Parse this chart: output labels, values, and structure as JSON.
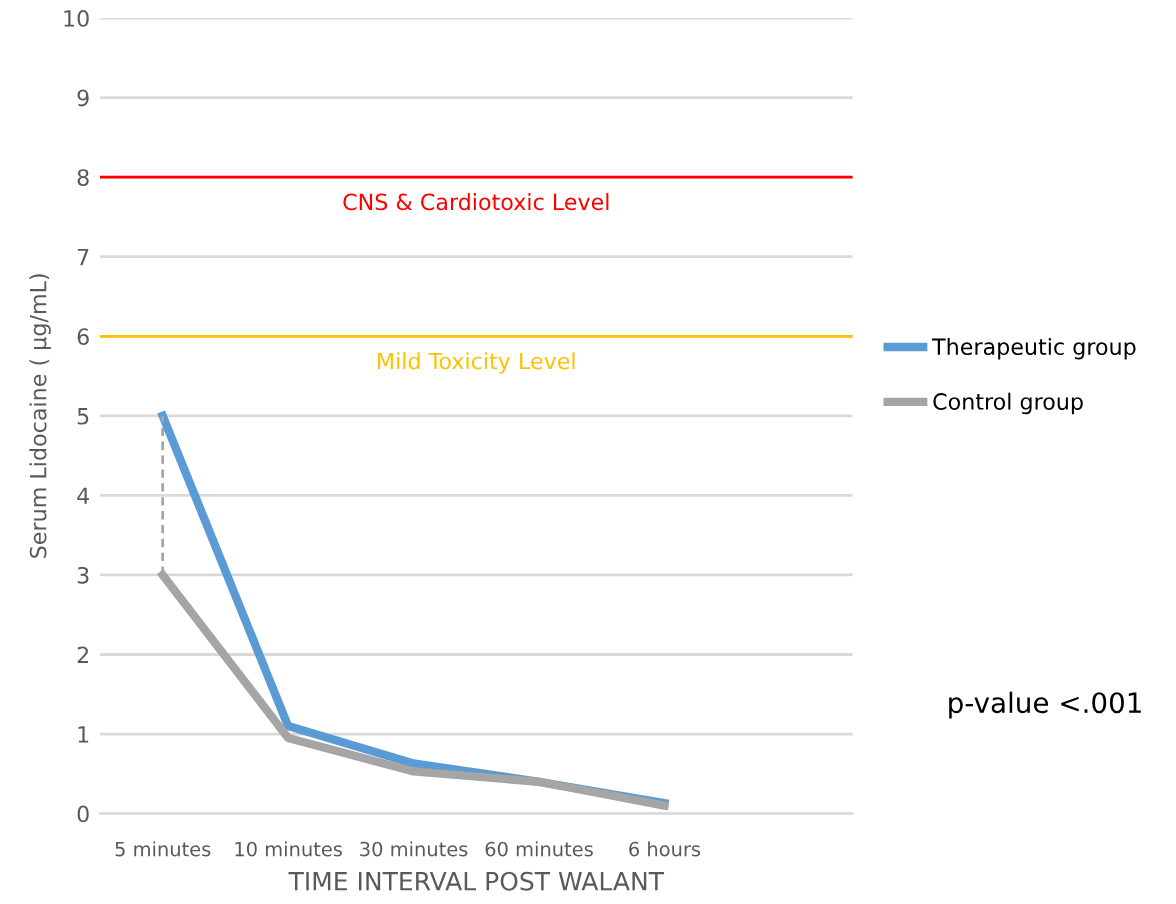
{
  "chart_data": {
    "type": "line",
    "xlabel": "TIME INTERVAL POST WALANT",
    "ylabel": "Serum Lidocaine ( µg/mL)",
    "categories": [
      "5 minutes",
      "10 minutes",
      "30 minutes",
      "60 minutes",
      "6 hours",
      null
    ],
    "series": [
      {
        "name": "Therapeutic group",
        "color": "#5b9bd5",
        "values": [
          5,
          1.1,
          0.63,
          0.4,
          0.13,
          null
        ]
      },
      {
        "name": "Control group",
        "color": "#a5a5a5",
        "values": [
          3,
          0.95,
          0.53,
          0.4,
          0.1,
          null
        ]
      },
      {
        "type": "line",
        "color": "#a5a5a5",
        "line_style": "dashed",
        "x": [
          "5 minutes",
          "5 minutes"
        ],
        "values": [
          3,
          5
        ]
      }
    ],
    "ylim": [
      0,
      10
    ],
    "yticks": [
      0,
      1,
      2,
      3,
      4,
      5,
      6,
      7,
      8,
      9,
      10
    ],
    "grid": "y",
    "legend": "right",
    "ref_lines": [
      {
        "axis": "y",
        "value": 8,
        "label": "CNS & Cardiotoxic Level",
        "color": "#ff0000"
      },
      {
        "axis": "y",
        "value": 6,
        "label": "Mild Toxicity Level",
        "color": "#ffc000"
      }
    ],
    "annotations": [
      "p-value <.001"
    ]
  }
}
